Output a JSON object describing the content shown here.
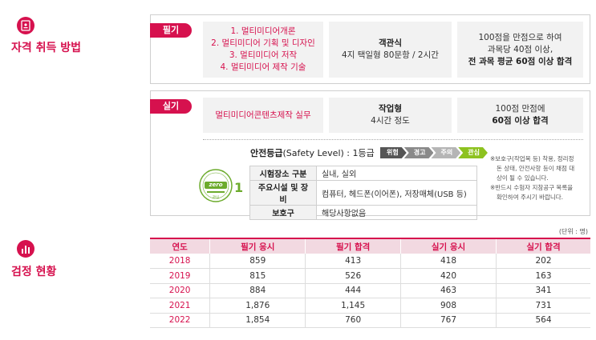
{
  "section1": {
    "title": "자격 취득 방법"
  },
  "section2": {
    "title": "검정 현황"
  },
  "written": {
    "tag": "필기",
    "items": [
      "1. 멀티미디어개론",
      "2. 멀티미디어 기획 및 디자인",
      "3. 멀티미디어 저작",
      "4. 멀티미디어 제작 기술"
    ],
    "type_title": "객관식",
    "type_detail": "4지 택일형 80문항 / 2시간",
    "pass_line1": "100점을 만점으로 하여",
    "pass_line2": "과목당 40점 이상,",
    "pass_line3": "전 과목 평균 60점 이상 합격"
  },
  "practical": {
    "tag": "실기",
    "subject": "멀티미디어콘텐츠제작 실무",
    "type_title": "작업형",
    "type_detail": "4시간 정도",
    "pass_line1": "100점 만점에",
    "pass_line2": "60점 이상 합격"
  },
  "safety": {
    "title_bold": "안전등급",
    "title_rest": "(Safety Level) : 1등급",
    "levels": [
      {
        "label": "위험",
        "color": "#555555"
      },
      {
        "label": "경고",
        "color": "#8a8a8a"
      },
      {
        "label": "주의",
        "color": "#b5b5b5"
      },
      {
        "label": "관심",
        "color": "#8dc21f"
      }
    ],
    "badge_text": "zero",
    "badge_level": "1",
    "badge_caption": "관심",
    "rows": [
      {
        "head": "시험장소 구분",
        "value": "실내, 실외"
      },
      {
        "head": "주요시설 및 장비",
        "value": "컴퓨터, 헤드폰(이어폰), 저장매체(USB 등)"
      },
      {
        "head": "보호구",
        "value": "해당사항없음"
      }
    ],
    "notes": [
      "※보호구(작업복 등) 착용, 정리정",
      "돈 상태, 안전사항 등이 채점 대",
      "상이 될 수 있습니다.",
      "※반드시 수험자 지참공구 목록을",
      "확인하여 주시기 바랍니다."
    ]
  },
  "stats": {
    "unit": "(단위 : 명)",
    "headers": [
      "연도",
      "필기 응시",
      "필기 합격",
      "실기 응시",
      "실기 합격"
    ],
    "rows": [
      [
        "2018",
        "859",
        "413",
        "418",
        "202"
      ],
      [
        "2019",
        "815",
        "526",
        "420",
        "163"
      ],
      [
        "2020",
        "884",
        "444",
        "463",
        "341"
      ],
      [
        "2021",
        "1,876",
        "1,145",
        "908",
        "731"
      ],
      [
        "2022",
        "1,854",
        "760",
        "767",
        "564"
      ]
    ]
  }
}
